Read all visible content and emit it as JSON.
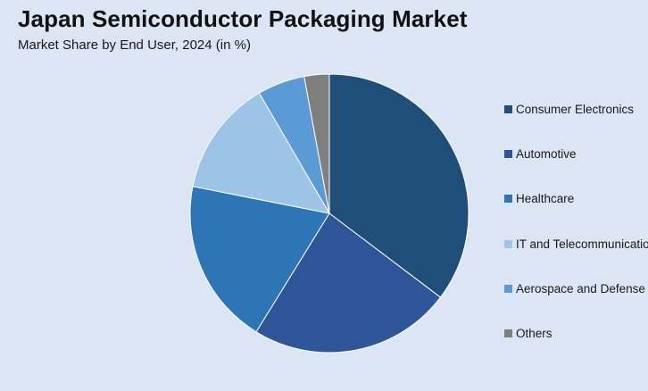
{
  "header": {
    "title": "Japan Semiconductor Packaging Market",
    "subtitle": "Market Share by End User, 2024 (in %)"
  },
  "chart_data": {
    "type": "pie",
    "title": "Japan Semiconductor Packaging Market",
    "subtitle": "Market Share by End User, 2024 (in %)",
    "start_angle_deg": 0,
    "direction": "clockwise",
    "legend_position": "right",
    "categories": [
      "Consumer Electronics",
      "Automotive",
      "Healthcare",
      "IT and Telecommunications",
      "Aerospace and Defense",
      "Others"
    ],
    "values": [
      35.3,
      23.5,
      19.3,
      13.5,
      5.5,
      2.9
    ],
    "colors": [
      "#1f4e79",
      "#2e5597",
      "#2e75b6",
      "#9dc3e6",
      "#5b9bd5",
      "#7f7f7f"
    ]
  }
}
